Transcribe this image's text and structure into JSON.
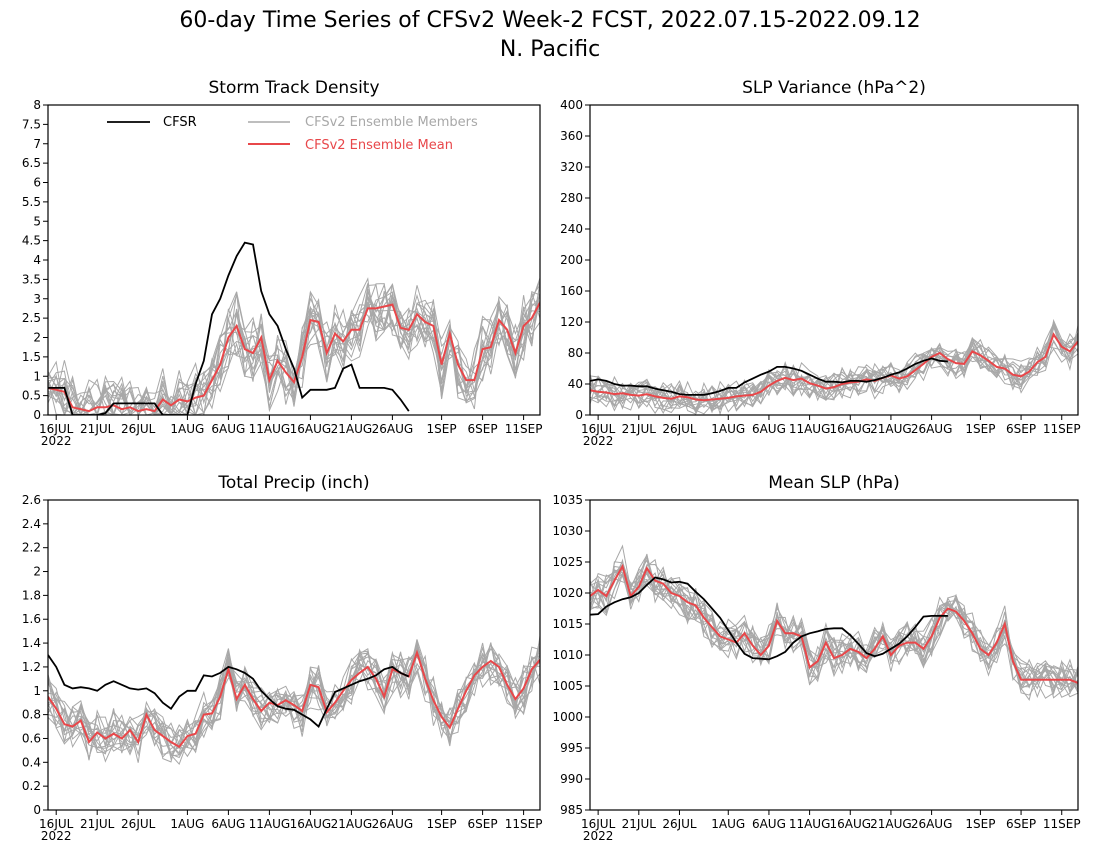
{
  "figure": {
    "title": "60-day Time Series of CFSv2 Week-2 FCST, 2022.07.15-2022.09.12",
    "subtitle": "N. Pacific"
  },
  "legend": {
    "cfsr": "CFSR",
    "members": "CFSv2 Ensemble Members",
    "mean": "CFSv2 Ensemble Mean"
  },
  "colors": {
    "cfsr": "#000000",
    "members": "#a8a8a8",
    "mean": "#e8474a"
  },
  "x_axis": {
    "labels": [
      "16JUL",
      "21JUL",
      "26JUL",
      "1AUG",
      "6AUG",
      "11AUG",
      "16AUG",
      "21AUG",
      "26AUG",
      "1SEP",
      "6SEP",
      "11SEP"
    ],
    "days": [
      1,
      6,
      11,
      17,
      22,
      27,
      32,
      37,
      42,
      48,
      53,
      58
    ],
    "year": "2022",
    "range": [
      0,
      60
    ]
  },
  "chart_data": [
    {
      "type": "line",
      "title": "Storm Track Density",
      "ylim": [
        0,
        8
      ],
      "yticks": [
        "0",
        "0.5",
        "1",
        "1.5",
        "2",
        "2.5",
        "3",
        "3.5",
        "4",
        "4.5",
        "5",
        "5.5",
        "6",
        "6.5",
        "7",
        "7.5",
        "8"
      ],
      "legend_position": "top",
      "members_spread": 0.7,
      "series": [
        {
          "name": "CFSR",
          "days": [
            0,
            1,
            2,
            3,
            4,
            5,
            6,
            7,
            8,
            9,
            10,
            11,
            12,
            13,
            14,
            15,
            16,
            17,
            18,
            19,
            20,
            21,
            22,
            23,
            24,
            25,
            26,
            27,
            28,
            29,
            30,
            31,
            32,
            33,
            34,
            35,
            36,
            37,
            38,
            39,
            40,
            41,
            42,
            43,
            44
          ],
          "values": [
            0.7,
            0.7,
            0.7,
            0.0,
            0.0,
            0.0,
            0.0,
            0.05,
            0.3,
            0.3,
            0.3,
            0.3,
            0.3,
            0.3,
            0.0,
            0.0,
            0.0,
            0.0,
            0.8,
            1.4,
            2.6,
            3.0,
            3.6,
            4.1,
            4.45,
            4.4,
            3.2,
            2.6,
            2.3,
            1.7,
            1.2,
            0.45,
            0.65,
            0.65,
            0.65,
            0.7,
            1.2,
            1.3,
            0.7,
            0.7,
            0.7,
            0.7,
            0.65,
            0.4,
            0.1
          ]
        },
        {
          "name": "CFSv2 Ensemble Mean",
          "days": [
            0,
            1,
            2,
            3,
            4,
            5,
            6,
            7,
            8,
            9,
            10,
            11,
            12,
            13,
            14,
            15,
            16,
            17,
            18,
            19,
            20,
            21,
            22,
            23,
            24,
            25,
            26,
            27,
            28,
            29,
            30,
            31,
            32,
            33,
            34,
            35,
            36,
            37,
            38,
            39,
            40,
            41,
            42,
            43,
            44,
            45,
            46,
            47,
            48,
            49,
            50,
            51,
            52,
            53,
            54,
            55,
            56,
            57,
            58,
            59,
            60
          ],
          "values": [
            0.7,
            0.65,
            0.6,
            0.2,
            0.15,
            0.1,
            0.2,
            0.2,
            0.25,
            0.15,
            0.2,
            0.1,
            0.15,
            0.1,
            0.4,
            0.25,
            0.4,
            0.35,
            0.45,
            0.5,
            0.9,
            1.3,
            2.0,
            2.3,
            1.7,
            1.6,
            2.0,
            0.9,
            1.4,
            1.1,
            0.85,
            1.5,
            2.45,
            2.4,
            1.6,
            2.1,
            1.9,
            2.2,
            2.2,
            2.75,
            2.75,
            2.8,
            2.85,
            2.25,
            2.2,
            2.6,
            2.4,
            2.3,
            1.3,
            2.1,
            1.3,
            0.9,
            0.9,
            1.7,
            1.75,
            2.45,
            2.2,
            1.6,
            2.3,
            2.5,
            2.9
          ]
        }
      ]
    },
    {
      "type": "line",
      "title": "SLP Variance (hPa^2)",
      "ylim": [
        0,
        400
      ],
      "yticks": [
        "0",
        "40",
        "80",
        "120",
        "160",
        "200",
        "240",
        "280",
        "320",
        "360",
        "400"
      ],
      "members_spread": 18,
      "series": [
        {
          "name": "CFSR",
          "days": [
            0,
            1,
            2,
            3,
            4,
            5,
            6,
            7,
            8,
            9,
            10,
            11,
            12,
            13,
            14,
            15,
            16,
            17,
            18,
            19,
            20,
            21,
            22,
            23,
            24,
            25,
            26,
            27,
            28,
            29,
            30,
            31,
            32,
            33,
            34,
            35,
            36,
            37,
            38,
            39,
            40,
            41,
            42,
            43,
            44
          ],
          "values": [
            44,
            46,
            44,
            40,
            38,
            38,
            37,
            37,
            34,
            32,
            30,
            27,
            26,
            26,
            26,
            28,
            31,
            35,
            35,
            42,
            47,
            52,
            56,
            62,
            62,
            60,
            57,
            52,
            47,
            43,
            43,
            42,
            44,
            44,
            43,
            45,
            48,
            52,
            55,
            60,
            66,
            70,
            73,
            70,
            69
          ]
        },
        {
          "name": "CFSv2 Ensemble Mean",
          "days": [
            0,
            1,
            2,
            3,
            4,
            5,
            6,
            7,
            8,
            9,
            10,
            11,
            12,
            13,
            14,
            15,
            16,
            17,
            18,
            19,
            20,
            21,
            22,
            23,
            24,
            25,
            26,
            27,
            28,
            29,
            30,
            31,
            32,
            33,
            34,
            35,
            36,
            37,
            38,
            39,
            40,
            41,
            42,
            43,
            44,
            45,
            46,
            47,
            48,
            49,
            50,
            51,
            52,
            53,
            54,
            55,
            56,
            57,
            58,
            59,
            60
          ],
          "values": [
            32,
            30,
            29,
            27,
            28,
            26,
            25,
            27,
            24,
            22,
            21,
            24,
            23,
            20,
            19,
            20,
            21,
            22,
            24,
            25,
            26,
            30,
            38,
            44,
            48,
            45,
            47,
            41,
            38,
            34,
            36,
            40,
            42,
            43,
            46,
            44,
            48,
            51,
            47,
            50,
            58,
            66,
            75,
            80,
            72,
            67,
            66,
            82,
            77,
            70,
            62,
            60,
            52,
            50,
            56,
            68,
            75,
            104,
            88,
            82,
            95
          ]
        }
      ]
    },
    {
      "type": "line",
      "title": "Total Precip (inch)",
      "ylim": [
        0,
        2.6
      ],
      "yticks": [
        "0",
        "0.2",
        "0.4",
        "0.6",
        "0.8",
        "1",
        "1.2",
        "1.4",
        "1.6",
        "1.8",
        "2",
        "2.2",
        "2.4",
        "2.6"
      ],
      "members_spread": 0.17,
      "series": [
        {
          "name": "CFSR",
          "days": [
            0,
            1,
            2,
            3,
            4,
            5,
            6,
            7,
            8,
            9,
            10,
            11,
            12,
            13,
            14,
            15,
            16,
            17,
            18,
            19,
            20,
            21,
            22,
            23,
            24,
            25,
            26,
            27,
            28,
            29,
            30,
            31,
            32,
            33,
            34,
            35,
            36,
            37,
            38,
            39,
            40,
            41,
            42,
            43,
            44
          ],
          "values": [
            1.3,
            1.2,
            1.05,
            1.02,
            1.03,
            1.02,
            1.0,
            1.05,
            1.08,
            1.05,
            1.02,
            1.01,
            1.02,
            0.98,
            0.9,
            0.85,
            0.95,
            1.0,
            1.0,
            1.13,
            1.12,
            1.15,
            1.2,
            1.18,
            1.15,
            1.1,
            1.0,
            0.93,
            0.87,
            0.85,
            0.84,
            0.8,
            0.76,
            0.7,
            0.85,
            0.99,
            1.02,
            1.05,
            1.08,
            1.1,
            1.13,
            1.18,
            1.2,
            1.15,
            1.12
          ]
        },
        {
          "name": "CFSv2 Ensemble Mean",
          "days": [
            0,
            1,
            2,
            3,
            4,
            5,
            6,
            7,
            8,
            9,
            10,
            11,
            12,
            13,
            14,
            15,
            16,
            17,
            18,
            19,
            20,
            21,
            22,
            23,
            24,
            25,
            26,
            27,
            28,
            29,
            30,
            31,
            32,
            33,
            34,
            35,
            36,
            37,
            38,
            39,
            40,
            41,
            42,
            43,
            44,
            45,
            46,
            47,
            48,
            49,
            50,
            51,
            52,
            53,
            54,
            55,
            56,
            57,
            58,
            59,
            60
          ],
          "values": [
            0.95,
            0.85,
            0.72,
            0.7,
            0.75,
            0.57,
            0.65,
            0.6,
            0.64,
            0.6,
            0.67,
            0.57,
            0.8,
            0.67,
            0.62,
            0.57,
            0.53,
            0.62,
            0.64,
            0.8,
            0.81,
            0.95,
            1.18,
            0.93,
            1.05,
            0.93,
            0.83,
            0.9,
            0.88,
            0.92,
            0.88,
            0.83,
            1.05,
            1.03,
            0.82,
            0.9,
            1.0,
            1.09,
            1.15,
            1.2,
            1.1,
            0.95,
            1.18,
            1.15,
            1.12,
            1.32,
            1.1,
            0.92,
            0.78,
            0.69,
            0.85,
            1.0,
            1.13,
            1.2,
            1.25,
            1.2,
            1.05,
            0.93,
            1.02,
            1.18,
            1.26
          ]
        }
      ]
    },
    {
      "type": "line",
      "title": "Mean SLP (hPa)",
      "ylim": [
        985,
        1035
      ],
      "yticks": [
        "985",
        "990",
        "995",
        "1000",
        "1005",
        "1010",
        "1015",
        "1020",
        "1025",
        "1030",
        "1035"
      ],
      "members_spread": 2.8,
      "series": [
        {
          "name": "CFSR",
          "days": [
            0,
            1,
            2,
            3,
            4,
            5,
            6,
            7,
            8,
            9,
            10,
            11,
            12,
            13,
            14,
            15,
            16,
            17,
            18,
            19,
            20,
            21,
            22,
            23,
            24,
            25,
            26,
            27,
            28,
            29,
            30,
            31,
            32,
            33,
            34,
            35,
            36,
            37,
            38,
            39,
            40,
            41,
            42,
            43,
            44
          ],
          "values": [
            1016.5,
            1016.6,
            1017.8,
            1018.5,
            1019.0,
            1019.3,
            1020.0,
            1021.3,
            1022.5,
            1022.2,
            1021.7,
            1021.8,
            1021.5,
            1020.2,
            1019.0,
            1017.5,
            1016.0,
            1014.0,
            1012.0,
            1010.2,
            1009.5,
            1009.4,
            1009.3,
            1009.8,
            1010.5,
            1012.0,
            1013.0,
            1013.5,
            1013.8,
            1014.2,
            1014.3,
            1014.3,
            1013.2,
            1011.8,
            1010.3,
            1009.8,
            1010.2,
            1011.0,
            1011.8,
            1013.0,
            1014.5,
            1016.2,
            1016.3,
            1016.3,
            1016.3
          ]
        },
        {
          "name": "CFSv2 Ensemble Mean",
          "days": [
            0,
            1,
            2,
            3,
            4,
            5,
            6,
            7,
            8,
            9,
            10,
            11,
            12,
            13,
            14,
            15,
            16,
            17,
            18,
            19,
            20,
            21,
            22,
            23,
            24,
            25,
            26,
            27,
            28,
            29,
            30,
            31,
            32,
            33,
            34,
            35,
            36,
            37,
            38,
            39,
            40,
            41,
            42,
            43,
            44,
            45,
            46,
            47,
            48,
            49,
            50,
            51,
            52,
            53,
            54,
            55,
            56,
            57,
            58,
            59,
            60
          ],
          "values": [
            1019.5,
            1020.5,
            1019.5,
            1022.0,
            1024.3,
            1019.5,
            1021.0,
            1024.0,
            1022.0,
            1021.5,
            1020.0,
            1019.5,
            1018.5,
            1018.0,
            1016.0,
            1014.5,
            1013.0,
            1012.5,
            1012.0,
            1013.5,
            1011.5,
            1010.0,
            1011.5,
            1015.5,
            1013.5,
            1013.5,
            1013.0,
            1008.0,
            1009.0,
            1012.0,
            1009.5,
            1010.0,
            1011.0,
            1010.5,
            1009.5,
            1011.0,
            1013.0,
            1010.0,
            1011.5,
            1012.0,
            1012.0,
            1011.0,
            1013.0,
            1016.0,
            1017.5,
            1017.0,
            1015.5,
            1013.5,
            1011.0,
            1010.0,
            1012.0,
            1015.0,
            1009.0,
            1006.0,
            1006.0,
            1006.0,
            1006.0,
            1006.0,
            1006.0,
            1006.0,
            1005.5
          ]
        }
      ]
    }
  ]
}
